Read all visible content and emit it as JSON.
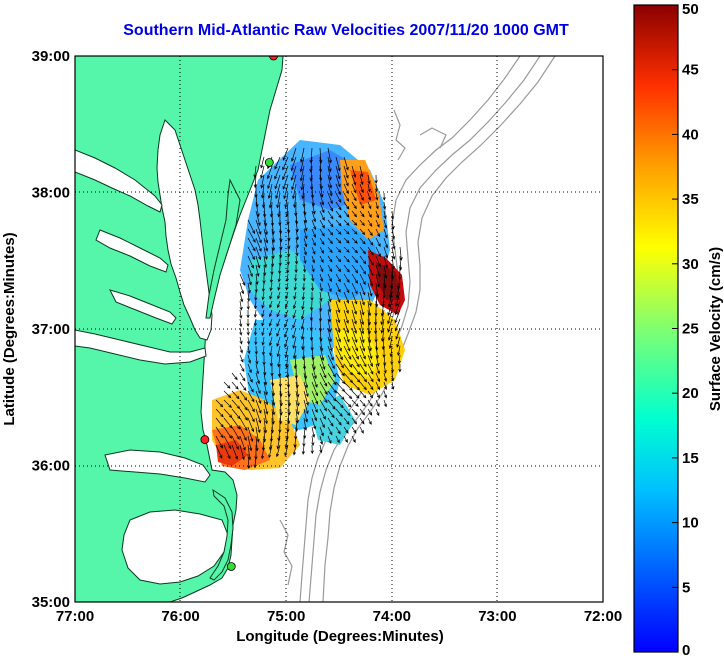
{
  "title": "Southern Mid-Atlantic Raw Velocities 2007/11/20 1000 GMT",
  "map": {
    "x_ticks": [
      "77:00",
      "76:00",
      "75:00",
      "74:00",
      "73:00",
      "72:00"
    ],
    "y_ticks": [
      "39:00",
      "38:00",
      "37:00",
      "36:00",
      "35:00"
    ],
    "xlabel": "Longitude (Degrees:Minutes)",
    "ylabel": "Latitude (Degrees:Minutes)",
    "lon_range": [
      -77,
      -72
    ],
    "lat_range": [
      35,
      39
    ],
    "colors": {
      "land": "#55f5aa",
      "bathymetry": "#9a9a9a",
      "grid": "#000000",
      "title": "#0000e6"
    },
    "stations": [
      {
        "lon": -75.12,
        "lat": 39.0,
        "color": "#ff2020"
      },
      {
        "lon": -75.16,
        "lat": 38.22,
        "color": "#33dd33"
      },
      {
        "lon": -75.77,
        "lat": 36.19,
        "color": "#ff2020"
      },
      {
        "lon": -75.52,
        "lat": 35.26,
        "color": "#33dd33"
      }
    ]
  },
  "colorbar": {
    "label": "Surface Velocity (cm/s)",
    "min": 0,
    "max": 50,
    "ticks": [
      "0",
      "5",
      "10",
      "15",
      "20",
      "25",
      "30",
      "35",
      "40",
      "45",
      "50"
    ],
    "colormap": "jet"
  }
}
